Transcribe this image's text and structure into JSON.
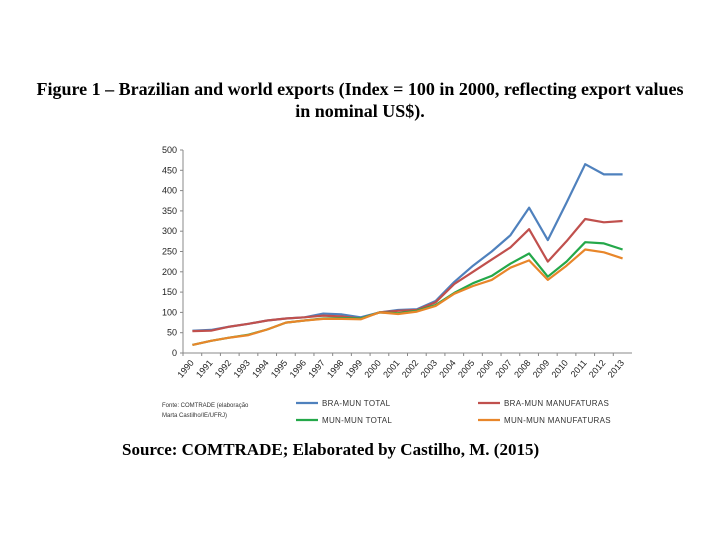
{
  "title_line1": "Figure 1 – Brazilian and world exports (Index = 100 in 2000, reflecting export values",
  "title_line2": "in nominal US$).",
  "note_line1": "Fonte: COMTRADE (elaboração",
  "note_line2": "Marta Castilho/IE/UFRJ)",
  "source": "Source: COMTRADE; Elaborated by Castilho, M. (2015)",
  "chart_data": {
    "type": "line",
    "ylim": [
      0,
      500
    ],
    "yticks": [
      0,
      50,
      100,
      150,
      200,
      250,
      300,
      350,
      400,
      450,
      500
    ],
    "x": [
      "1990",
      "1991",
      "1992",
      "1993",
      "1994",
      "1995",
      "1996",
      "1997",
      "1998",
      "1999",
      "2000",
      "2001",
      "2002",
      "2003",
      "2004",
      "2005",
      "2006",
      "2007",
      "2008",
      "2009",
      "2010",
      "2011",
      "2012",
      "2013"
    ],
    "series": [
      {
        "name": "BRA-MUN TOTAL",
        "color": "#4f81bd",
        "values": [
          55,
          57,
          65,
          72,
          80,
          85,
          88,
          97,
          95,
          88,
          100,
          106,
          108,
          128,
          175,
          215,
          250,
          290,
          358,
          278,
          370,
          465,
          440,
          440
        ]
      },
      {
        "name": "BRA-MUN MANUFATURAS",
        "color": "#c0504d",
        "values": [
          54,
          55,
          65,
          72,
          80,
          85,
          88,
          92,
          90,
          85,
          100,
          104,
          106,
          125,
          170,
          200,
          230,
          260,
          305,
          225,
          275,
          330,
          322,
          325
        ]
      },
      {
        "name": "MUN-MUN TOTAL",
        "color": "#24a84a",
        "values": [
          20,
          30,
          38,
          45,
          58,
          75,
          80,
          85,
          86,
          85,
          100,
          98,
          104,
          118,
          148,
          172,
          190,
          220,
          245,
          188,
          225,
          273,
          270,
          255
        ]
      },
      {
        "name": "MUN-MUN MANUFATURAS",
        "color": "#e8862a",
        "values": [
          20,
          30,
          38,
          44,
          58,
          75,
          80,
          84,
          84,
          83,
          100,
          96,
          102,
          116,
          146,
          165,
          180,
          210,
          228,
          180,
          215,
          255,
          248,
          233
        ]
      }
    ]
  }
}
